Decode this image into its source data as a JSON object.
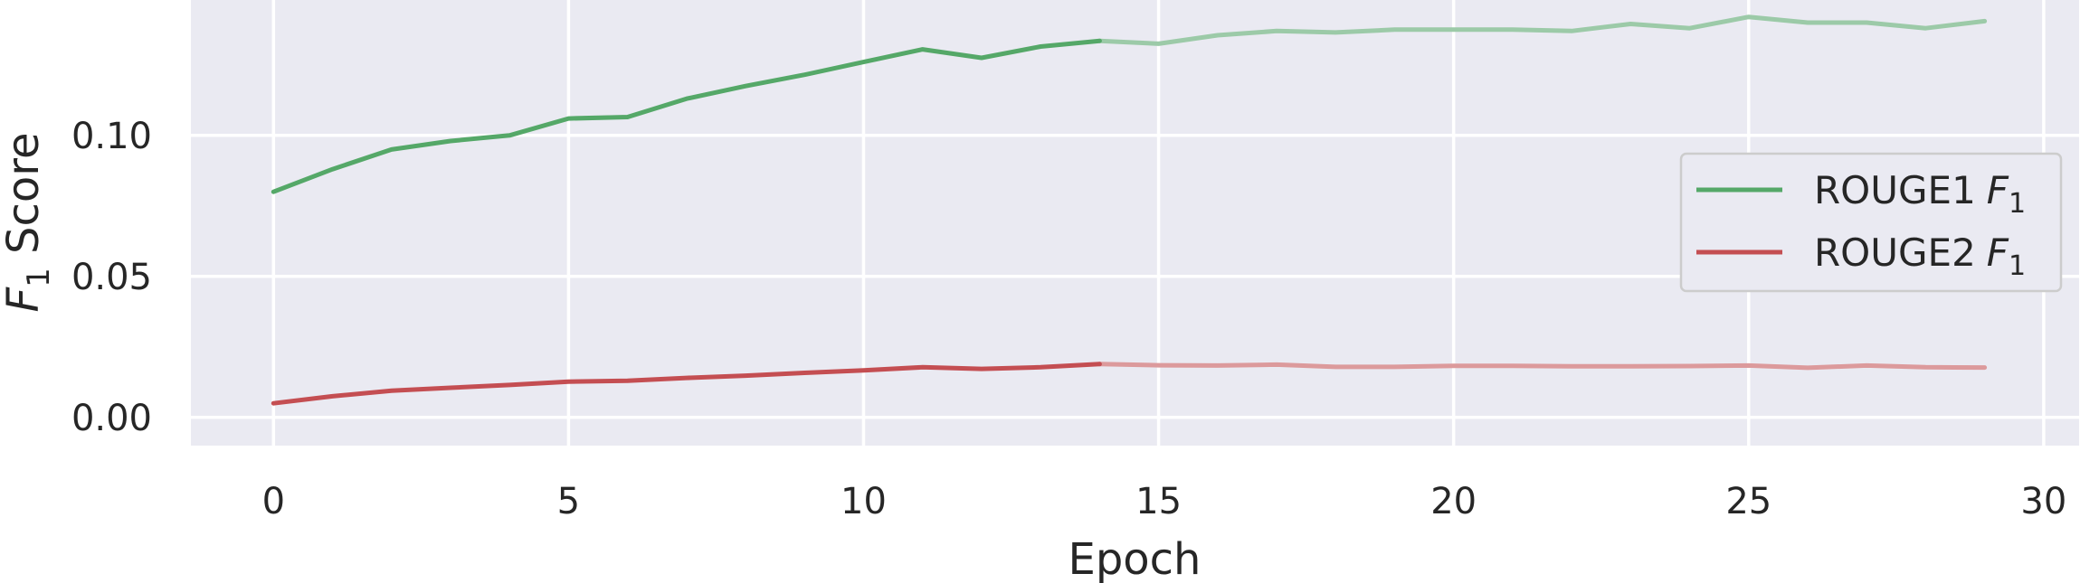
{
  "chart_data": {
    "type": "line",
    "title": "",
    "xlabel": "Epoch",
    "ylabel": {
      "base": "F",
      "sub": "1",
      "rest": " Score"
    },
    "xlim": [
      -1.4,
      30.6
    ],
    "ylim": [
      -0.01,
      0.148
    ],
    "xticks": [
      0,
      5,
      10,
      15,
      20,
      25,
      30
    ],
    "yticks": [
      0.0,
      0.05,
      0.1
    ],
    "ytick_labels": [
      "0.00",
      "0.05",
      "0.10"
    ],
    "grid": true,
    "background": "#eaeaf2",
    "legend_position": "center-right",
    "highlight_until_epoch": 14,
    "x": [
      0,
      1,
      2,
      3,
      4,
      5,
      6,
      7,
      8,
      9,
      10,
      11,
      12,
      13,
      14,
      15,
      16,
      17,
      18,
      19,
      20,
      21,
      22,
      23,
      24,
      25,
      26,
      27,
      28,
      29
    ],
    "series": [
      {
        "name": "ROUGE1",
        "name_sub": "1",
        "color": "#55a868",
        "faded_color": "#9ccaa8",
        "values": [
          0.08,
          0.088,
          0.095,
          0.098,
          0.1,
          0.106,
          0.1065,
          0.113,
          0.1175,
          0.1215,
          0.126,
          0.1305,
          0.1275,
          0.1315,
          0.1335,
          0.1325,
          0.1355,
          0.137,
          0.1365,
          0.1375,
          0.1375,
          0.1375,
          0.137,
          0.1395,
          0.138,
          0.142,
          0.14,
          0.14,
          0.138,
          0.1405
        ]
      },
      {
        "name": "ROUGE2",
        "name_sub": "1",
        "color": "#c44e52",
        "faded_color": "#dc9a9c",
        "values": [
          0.005,
          0.0075,
          0.0095,
          0.0105,
          0.0115,
          0.0127,
          0.013,
          0.014,
          0.0148,
          0.0158,
          0.0167,
          0.0178,
          0.0172,
          0.0178,
          0.0189,
          0.0185,
          0.0184,
          0.0187,
          0.0179,
          0.0179,
          0.0183,
          0.0183,
          0.0181,
          0.0181,
          0.0182,
          0.0184,
          0.0176,
          0.0184,
          0.0178,
          0.0177
        ]
      }
    ]
  }
}
